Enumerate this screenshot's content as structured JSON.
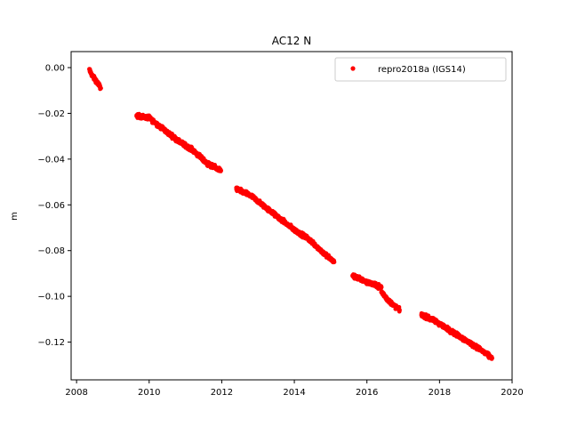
{
  "chart_data": {
    "type": "scatter",
    "title": "AC12 N",
    "xlabel": "",
    "ylabel": "m",
    "xlim": [
      2007.85,
      2020.0
    ],
    "ylim": [
      -0.1365,
      0.007
    ],
    "xticks": [
      2008,
      2010,
      2012,
      2014,
      2016,
      2018,
      2020
    ],
    "xtick_labels": [
      "2008",
      "2010",
      "2012",
      "2014",
      "2016",
      "2018",
      "2020"
    ],
    "yticks": [
      0.0,
      -0.02,
      -0.04,
      -0.06,
      -0.08,
      -0.1,
      -0.12
    ],
    "ytick_labels": [
      "0.00",
      "−0.02",
      "−0.04",
      "−0.06",
      "−0.08",
      "−0.10",
      "−0.12"
    ],
    "grid": false,
    "legend_position": "top-right",
    "series": [
      {
        "name": "repro2018a (IGS14)",
        "color": "#ff0000",
        "marker": "circle",
        "segments": [
          {
            "x": [
              2008.35,
              2008.45,
              2008.55,
              2008.67
            ],
            "y": [
              -0.001,
              -0.004,
              -0.006,
              -0.009
            ]
          },
          {
            "x": [
              2009.65,
              2010.0,
              2010.4,
              2010.8,
              2011.2,
              2011.6,
              2011.98
            ],
            "y": [
              -0.021,
              -0.022,
              -0.027,
              -0.032,
              -0.036,
              -0.042,
              -0.045
            ]
          },
          {
            "x": [
              2012.4,
              2012.8,
              2013.2,
              2013.6,
              2014.0,
              2014.4,
              2014.8,
              2015.1
            ],
            "y": [
              -0.053,
              -0.056,
              -0.061,
              -0.066,
              -0.071,
              -0.075,
              -0.081,
              -0.085
            ]
          },
          {
            "x": [
              2015.6,
              2015.9,
              2016.2,
              2016.4
            ],
            "y": [
              -0.091,
              -0.093,
              -0.095,
              -0.096
            ]
          },
          {
            "x": [
              2016.4,
              2016.6,
              2016.9
            ],
            "y": [
              -0.098,
              -0.102,
              -0.106
            ]
          },
          {
            "x": [
              2017.5,
              2017.9,
              2018.3,
              2018.7,
              2019.1,
              2019.45
            ],
            "y": [
              -0.108,
              -0.111,
              -0.115,
              -0.119,
              -0.123,
              -0.127
            ]
          }
        ]
      }
    ]
  }
}
